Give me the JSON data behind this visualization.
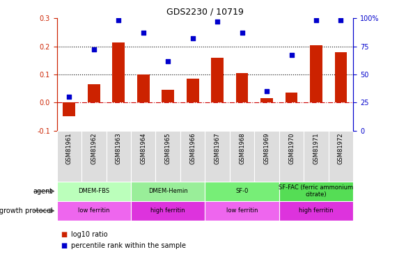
{
  "title": "GDS2230 / 10719",
  "samples": [
    "GSM81961",
    "GSM81962",
    "GSM81963",
    "GSM81964",
    "GSM81965",
    "GSM81966",
    "GSM81967",
    "GSM81968",
    "GSM81969",
    "GSM81970",
    "GSM81971",
    "GSM81972"
  ],
  "log10_ratio": [
    -0.05,
    0.065,
    0.215,
    0.1,
    0.045,
    0.085,
    0.16,
    0.105,
    0.015,
    0.035,
    0.205,
    0.18
  ],
  "percentile_rank": [
    30,
    72,
    98,
    87,
    62,
    82,
    97,
    87,
    35,
    67,
    98,
    98
  ],
  "agent_groups": [
    {
      "label": "DMEM-FBS",
      "start": 0,
      "end": 2,
      "color": "#bbffbb"
    },
    {
      "label": "DMEM-Hemin",
      "start": 3,
      "end": 5,
      "color": "#99ee99"
    },
    {
      "label": "SF-0",
      "start": 6,
      "end": 8,
      "color": "#77ee77"
    },
    {
      "label": "SF-FAC (ferric ammonium\ncitrate)",
      "start": 9,
      "end": 11,
      "color": "#55dd55"
    }
  ],
  "protocol_groups": [
    {
      "label": "low ferritin",
      "start": 0,
      "end": 2,
      "color": "#ee66ee"
    },
    {
      "label": "high ferritin",
      "start": 3,
      "end": 5,
      "color": "#dd33dd"
    },
    {
      "label": "low ferritin",
      "start": 6,
      "end": 8,
      "color": "#ee66ee"
    },
    {
      "label": "high ferritin",
      "start": 9,
      "end": 11,
      "color": "#dd33dd"
    }
  ],
  "ylim_left": [
    -0.1,
    0.3
  ],
  "ylim_right": [
    0,
    100
  ],
  "bar_color": "#cc2200",
  "dot_color": "#0000cc",
  "hline_color": "#cc0000",
  "dotted_vals": [
    0.1,
    0.2
  ],
  "left_ticks": [
    -0.1,
    0.0,
    0.1,
    0.2,
    0.3
  ],
  "right_ticks": [
    0,
    25,
    50,
    75,
    100
  ],
  "right_tick_labels": [
    "0",
    "25",
    "50",
    "75",
    "100%"
  ]
}
